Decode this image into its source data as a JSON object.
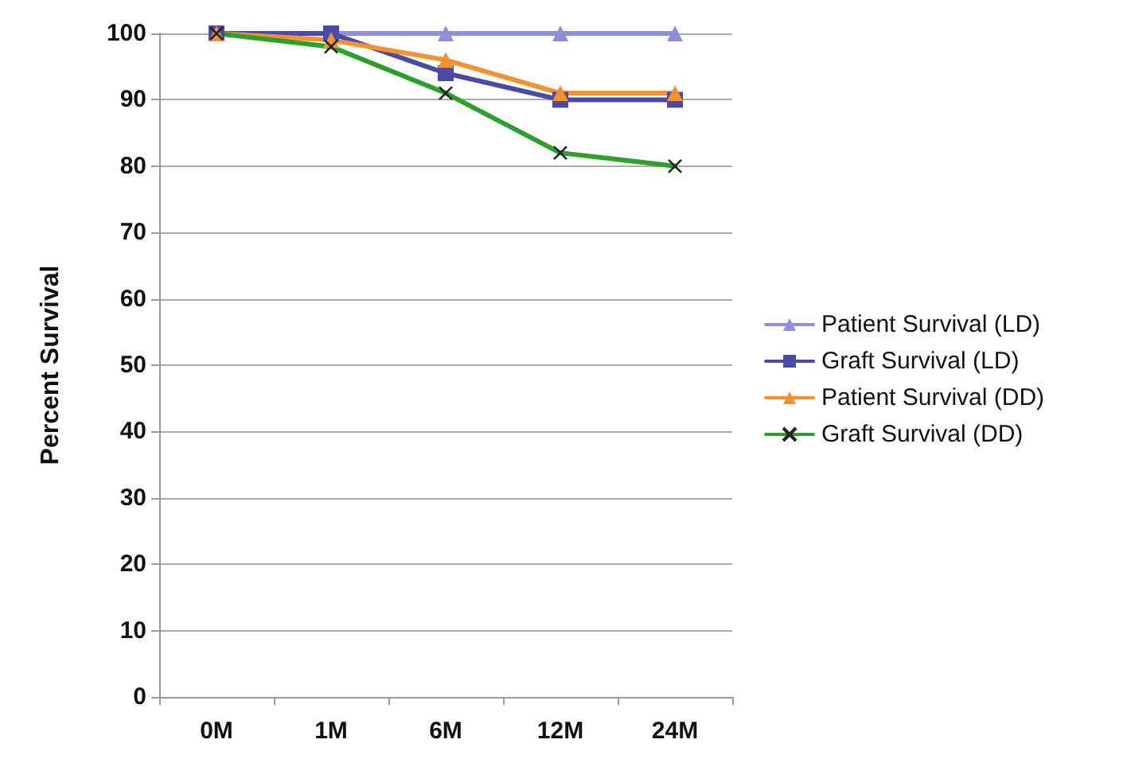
{
  "chart_data": {
    "type": "line",
    "ylabel": "Percent Survival",
    "categories": [
      "0M",
      "1M",
      "6M",
      "12M",
      "24M"
    ],
    "series": [
      {
        "name": "Patient Survival (LD)",
        "color": "#8b8fdc",
        "marker": "triangle",
        "values": [
          100,
          100,
          100,
          100,
          100
        ]
      },
      {
        "name": "Graft Survival (LD)",
        "color": "#4a4aa8",
        "marker": "square",
        "values": [
          100,
          100,
          94,
          90,
          90
        ]
      },
      {
        "name": "Patient Survival (DD)",
        "color": "#f5922f",
        "marker": "triangle",
        "values": [
          100,
          99,
          96,
          91,
          91
        ]
      },
      {
        "name": "Graft Survival (DD)",
        "color": "#2ca02c",
        "marker": "cross",
        "values": [
          100,
          98,
          91,
          82,
          80
        ]
      }
    ],
    "ylim": [
      0,
      100
    ],
    "yticks": [
      0,
      10,
      20,
      30,
      40,
      50,
      60,
      70,
      80,
      90,
      100
    ],
    "grid": "y",
    "legend": "right",
    "line_style": "solid"
  }
}
